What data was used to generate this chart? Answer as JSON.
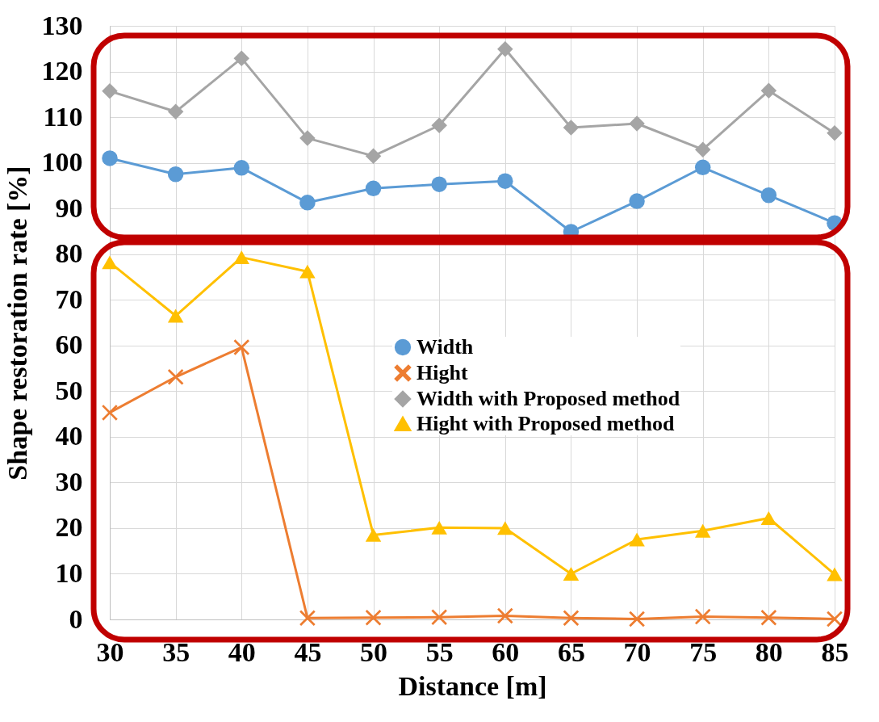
{
  "chart_data": {
    "type": "line",
    "xlabel": "Distance [m]",
    "ylabel": "Shape restoration rate  [%]",
    "x": [
      30,
      35,
      40,
      45,
      50,
      55,
      60,
      65,
      70,
      75,
      80,
      85
    ],
    "series": [
      {
        "name": "Width",
        "color": "#5b9bd5",
        "marker": "circle",
        "values": [
          101.0,
          97.5,
          98.9,
          91.3,
          94.4,
          95.3,
          96.0,
          84.9,
          91.6,
          99.0,
          92.9,
          86.8
        ]
      },
      {
        "name": "Hight",
        "color": "#ed7d31",
        "marker": "cross",
        "values": [
          45.3,
          53.1,
          59.6,
          0.3,
          0.4,
          0.5,
          0.8,
          0.3,
          0.1,
          0.6,
          0.4,
          0.1
        ]
      },
      {
        "name": "Width with Proposed method",
        "color": "#a5a5a5",
        "marker": "diamond",
        "values": [
          115.7,
          111.2,
          122.9,
          105.4,
          101.5,
          108.2,
          124.9,
          107.7,
          108.6,
          102.9,
          115.8,
          106.5
        ]
      },
      {
        "name": "Hight with Proposed method",
        "color": "#ffc000",
        "marker": "triangle",
        "values": [
          78.2,
          66.5,
          79.3,
          76.2,
          18.5,
          20.1,
          20.0,
          10.0,
          17.5,
          19.4,
          22.2,
          9.9
        ]
      }
    ],
    "xlim": [
      30,
      85
    ],
    "xticks": [
      30,
      35,
      40,
      45,
      50,
      55,
      60,
      65,
      70,
      75,
      80,
      85
    ],
    "ylim": [
      0,
      130
    ],
    "yticks": [
      0,
      10,
      20,
      30,
      40,
      50,
      60,
      70,
      80,
      90,
      100,
      110,
      120,
      130
    ],
    "grid": true,
    "legend": "right",
    "line_style": "solid"
  }
}
